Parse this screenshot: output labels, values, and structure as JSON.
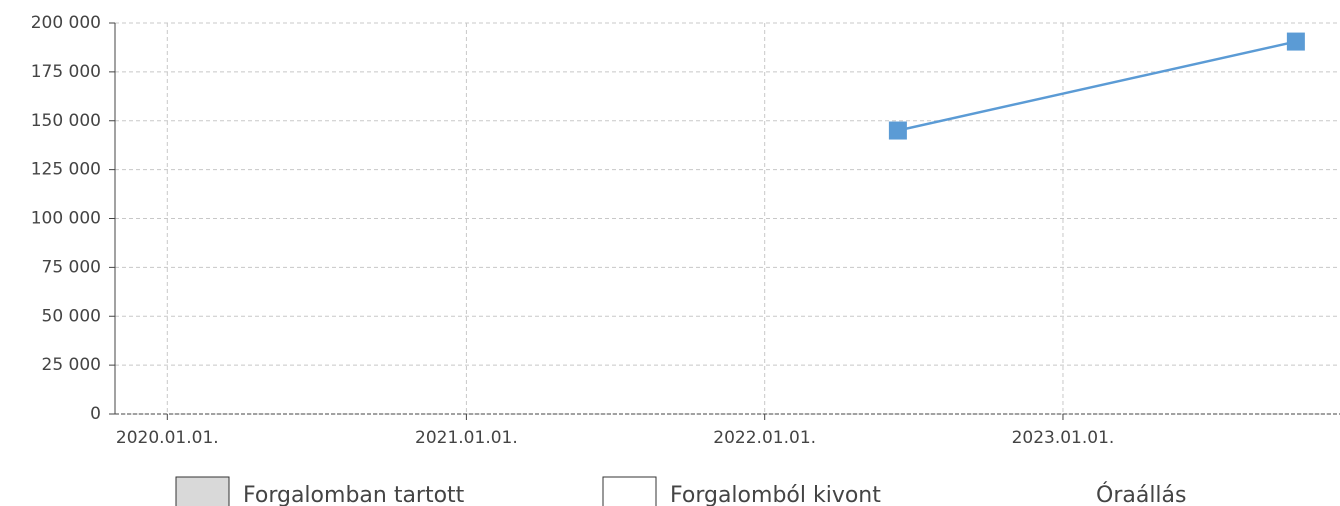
{
  "chart_data": {
    "type": "line",
    "x": [
      "2022-06-13",
      "2023-10-13"
    ],
    "series": [
      {
        "name": "Óraállás",
        "color": "#5b9bd5",
        "values": [
          145000,
          190500
        ]
      }
    ],
    "xlim": [
      "2019-10-29",
      "2023-12-06"
    ],
    "xticks": [
      {
        "value": "2020-01-01",
        "label": "2020.01.01."
      },
      {
        "value": "2021-01-01",
        "label": "2021.01.01."
      },
      {
        "value": "2022-01-01",
        "label": "2022.01.01."
      },
      {
        "value": "2023-01-01",
        "label": "2023.01.01."
      }
    ],
    "ylim": [
      0,
      200000
    ],
    "yticks": [
      0,
      {
        "value": 25000,
        "label": "25 000"
      },
      {
        "value": 50000,
        "label": "50 000"
      },
      {
        "value": 75000,
        "label": "75 000"
      },
      {
        "value": 100000,
        "label": "100 000"
      },
      {
        "value": 125000,
        "label": "125 000"
      },
      {
        "value": 150000,
        "label": "150 000"
      },
      {
        "value": 175000,
        "label": "175 000"
      },
      {
        "value": 200000,
        "label": "200 000"
      }
    ],
    "grid": true,
    "legend_items": [
      {
        "name": "Forgalomban tartott",
        "color": "#d9d9d9"
      },
      {
        "name": "Forgalomból kivont",
        "color": "#ffffff"
      }
    ]
  }
}
